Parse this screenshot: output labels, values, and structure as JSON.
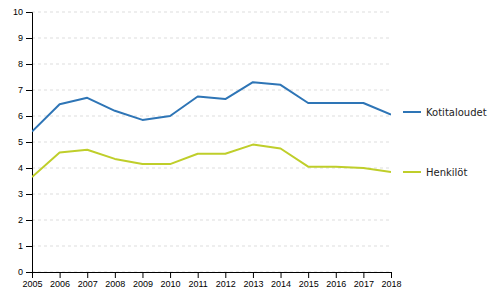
{
  "chart_data": {
    "type": "line",
    "x": [
      2005,
      2006,
      2007,
      2008,
      2009,
      2010,
      2011,
      2012,
      2013,
      2014,
      2015,
      2016,
      2017,
      2018
    ],
    "series": [
      {
        "name": "Kotitaloudet",
        "color": "#2E75B6",
        "values": [
          5.4,
          6.45,
          6.7,
          6.2,
          5.85,
          6.0,
          6.75,
          6.65,
          7.3,
          7.2,
          6.5,
          6.5,
          6.5,
          6.05
        ]
      },
      {
        "name": "Henkilöt",
        "color": "#BFCE2A",
        "values": [
          3.65,
          4.6,
          4.7,
          4.35,
          4.15,
          4.15,
          4.55,
          4.55,
          4.9,
          4.75,
          4.05,
          4.05,
          4.0,
          3.85
        ]
      }
    ],
    "xlim": [
      2005,
      2018
    ],
    "xticks": [
      2005,
      2006,
      2007,
      2008,
      2009,
      2010,
      2011,
      2012,
      2013,
      2014,
      2015,
      2016,
      2017,
      2018
    ],
    "ylim": [
      0,
      10
    ],
    "yticks": [
      0,
      1,
      2,
      3,
      4,
      5,
      6,
      7,
      8,
      9,
      10
    ],
    "grid": true,
    "legend": "right"
  }
}
